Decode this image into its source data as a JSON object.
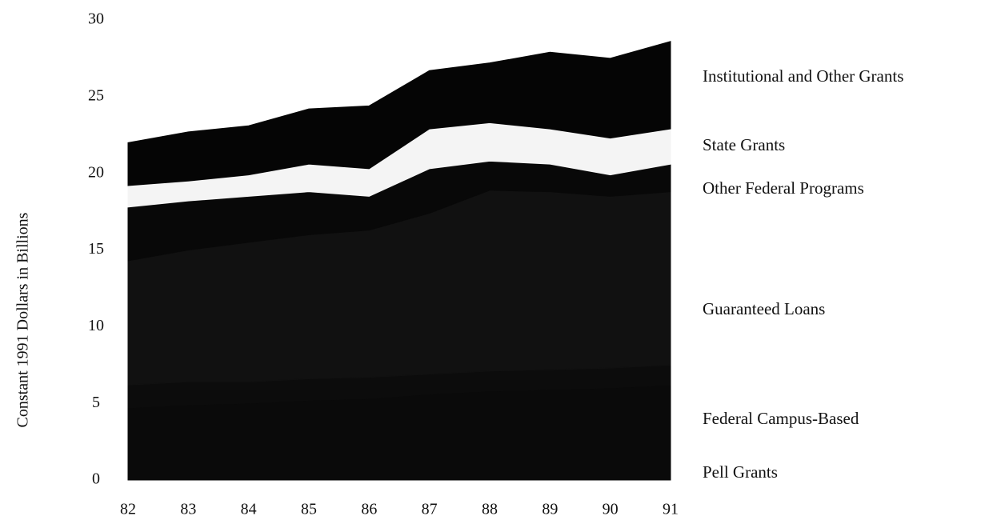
{
  "chart_data": {
    "type": "stacked_area",
    "y_label": "Constant 1991 Dollars in Billions",
    "categories": [
      "82",
      "83",
      "84",
      "85",
      "86",
      "87",
      "88",
      "89",
      "90",
      "91"
    ],
    "ylim": [
      0,
      30
    ],
    "yticks": [
      0,
      5,
      10,
      15,
      20,
      25,
      30
    ],
    "series": [
      {
        "name": "Pell Grants",
        "color": "#0a0a0a",
        "values": [
          4.7,
          4.9,
          5.0,
          5.2,
          5.3,
          5.6,
          5.8,
          5.9,
          6.0,
          6.2
        ]
      },
      {
        "name": "Federal Campus-Based",
        "color": "#0c0c0c",
        "values": [
          1.5,
          1.5,
          1.4,
          1.4,
          1.4,
          1.3,
          1.3,
          1.3,
          1.3,
          1.3
        ]
      },
      {
        "name": "Guaranteed Loans",
        "color": "#111111",
        "values": [
          8.1,
          8.6,
          9.1,
          9.4,
          9.6,
          10.5,
          11.8,
          11.6,
          11.2,
          11.3
        ]
      },
      {
        "name": "Other Federal Programs",
        "color": "#080808",
        "values": [
          3.5,
          3.2,
          3.0,
          2.8,
          2.2,
          2.9,
          1.9,
          1.8,
          1.4,
          1.8
        ]
      },
      {
        "name": "State Grants",
        "color": "#f4f4f4",
        "values": [
          1.4,
          1.3,
          1.4,
          1.8,
          1.8,
          2.6,
          2.5,
          2.3,
          2.4,
          2.3
        ]
      },
      {
        "name": "Institutional and Other Grants",
        "color": "#050505",
        "values": [
          2.8,
          3.2,
          3.2,
          3.6,
          4.1,
          3.8,
          3.9,
          5.0,
          5.2,
          5.7
        ]
      }
    ]
  }
}
